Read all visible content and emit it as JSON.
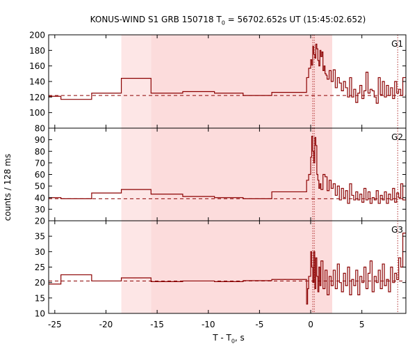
{
  "title": {
    "prefix": "KONUS-WIND S1 GRB 150718 T",
    "sub": "0",
    "suffix": " = 56702.652s UT (15:45:02.652)"
  },
  "xlabel": {
    "prefix": "T - T",
    "sub": "0",
    "suffix": ", s"
  },
  "ylabel": "counts / 128 ms",
  "colors": {
    "curve": "#8b0000",
    "background_dash": "#8b0000",
    "shade_light": "#fde6e6",
    "shade_dark": "#fcdcdc",
    "vline": "#b03030"
  },
  "chart_data": {
    "type": "line",
    "title": "KONUS-WIND S1 GRB 150718 T0 = 56702.652s UT (15:45:02.652)",
    "xlabel": "T - T0, s",
    "ylabel": "counts / 128 ms",
    "xlim": [
      -25.6,
      9.3
    ],
    "xticks": [
      -25,
      -20,
      -15,
      -10,
      -5,
      0,
      5
    ],
    "shaded_intervals": [
      {
        "x0": -18.5,
        "x1": -15.6,
        "shade": "light"
      },
      {
        "x0": -15.6,
        "x1": 2.1,
        "shade": "dark"
      }
    ],
    "vertical_lines": [
      0.2,
      0.35,
      8.5
    ],
    "panels": [
      {
        "name": "G1",
        "ylim": [
          80,
          200
        ],
        "yticks": [
          80,
          100,
          120,
          140,
          160,
          180,
          200
        ],
        "tick_labels": [
          "80",
          "100",
          "120",
          "140",
          "160",
          "180",
          "200"
        ],
        "background": 122,
        "steps": [
          [
            -25.6,
            121
          ],
          [
            -24.4,
            117
          ],
          [
            -21.4,
            125
          ],
          [
            -18.5,
            144
          ],
          [
            -15.6,
            125
          ],
          [
            -12.5,
            127
          ],
          [
            -9.4,
            125
          ],
          [
            -6.6,
            122
          ],
          [
            -3.8,
            126
          ],
          [
            -0.4,
            145
          ],
          [
            -0.2,
            157
          ],
          [
            0.0,
            168
          ],
          [
            0.1,
            161
          ],
          [
            0.2,
            185
          ],
          [
            0.3,
            175
          ],
          [
            0.4,
            170
          ],
          [
            0.5,
            188
          ],
          [
            0.6,
            182
          ],
          [
            0.7,
            167
          ],
          [
            0.8,
            160
          ],
          [
            0.9,
            180
          ],
          [
            1.0,
            172
          ],
          [
            1.1,
            178
          ],
          [
            1.2,
            154
          ],
          [
            1.3,
            160
          ],
          [
            1.4,
            150
          ],
          [
            1.5,
            148
          ],
          [
            1.6,
            143
          ],
          [
            1.8,
            154
          ],
          [
            2.0,
            140
          ],
          [
            2.2,
            155
          ],
          [
            2.4,
            132
          ],
          [
            2.6,
            145
          ],
          [
            2.8,
            138
          ],
          [
            3.0,
            128
          ],
          [
            3.2,
            140
          ],
          [
            3.4,
            132
          ],
          [
            3.6,
            120
          ],
          [
            3.8,
            145
          ],
          [
            4.0,
            120
          ],
          [
            4.2,
            130
          ],
          [
            4.4,
            113
          ],
          [
            4.6,
            125
          ],
          [
            4.8,
            135
          ],
          [
            5.0,
            118
          ],
          [
            5.2,
            128
          ],
          [
            5.4,
            152
          ],
          [
            5.6,
            125
          ],
          [
            5.8,
            130
          ],
          [
            6.0,
            128
          ],
          [
            6.2,
            120
          ],
          [
            6.4,
            112
          ],
          [
            6.6,
            145
          ],
          [
            6.8,
            123
          ],
          [
            7.0,
            140
          ],
          [
            7.2,
            120
          ],
          [
            7.4,
            135
          ],
          [
            7.6,
            122
          ],
          [
            7.8,
            132
          ],
          [
            8.0,
            118
          ],
          [
            8.2,
            140
          ],
          [
            8.4,
            125
          ],
          [
            8.6,
            130
          ],
          [
            8.8,
            122
          ],
          [
            9.0,
            145
          ],
          [
            9.3,
            145
          ]
        ]
      },
      {
        "name": "G2",
        "ylim": [
          20,
          100
        ],
        "yticks": [
          20,
          30,
          40,
          50,
          60,
          70,
          80,
          90
        ],
        "tick_labels": [
          "20",
          "30",
          "40",
          "50",
          "60",
          "70",
          "80",
          "90"
        ],
        "background": 39,
        "steps": [
          [
            -25.6,
            40
          ],
          [
            -24.4,
            39
          ],
          [
            -21.4,
            44
          ],
          [
            -18.5,
            47
          ],
          [
            -15.6,
            43
          ],
          [
            -12.5,
            41
          ],
          [
            -9.4,
            40
          ],
          [
            -6.6,
            39
          ],
          [
            -3.8,
            45
          ],
          [
            -0.4,
            55
          ],
          [
            -0.2,
            60
          ],
          [
            0.0,
            75
          ],
          [
            0.1,
            93
          ],
          [
            0.2,
            80
          ],
          [
            0.3,
            70
          ],
          [
            0.4,
            92
          ],
          [
            0.5,
            85
          ],
          [
            0.6,
            60
          ],
          [
            0.7,
            55
          ],
          [
            0.8,
            48
          ],
          [
            0.9,
            52
          ],
          [
            1.0,
            47
          ],
          [
            1.2,
            60
          ],
          [
            1.4,
            58
          ],
          [
            1.6,
            46
          ],
          [
            1.8,
            55
          ],
          [
            2.0,
            48
          ],
          [
            2.2,
            52
          ],
          [
            2.4,
            42
          ],
          [
            2.6,
            50
          ],
          [
            2.8,
            38
          ],
          [
            3.0,
            48
          ],
          [
            3.2,
            40
          ],
          [
            3.4,
            46
          ],
          [
            3.6,
            35
          ],
          [
            3.8,
            52
          ],
          [
            4.0,
            42
          ],
          [
            4.2,
            38
          ],
          [
            4.4,
            45
          ],
          [
            4.6,
            38
          ],
          [
            4.8,
            43
          ],
          [
            5.0,
            36
          ],
          [
            5.2,
            48
          ],
          [
            5.4,
            38
          ],
          [
            5.6,
            45
          ],
          [
            5.8,
            35
          ],
          [
            6.0,
            40
          ],
          [
            6.2,
            38
          ],
          [
            6.4,
            46
          ],
          [
            6.6,
            35
          ],
          [
            6.8,
            42
          ],
          [
            7.0,
            38
          ],
          [
            7.2,
            45
          ],
          [
            7.4,
            35
          ],
          [
            7.6,
            43
          ],
          [
            7.8,
            38
          ],
          [
            8.0,
            48
          ],
          [
            8.2,
            36
          ],
          [
            8.4,
            44
          ],
          [
            8.6,
            40
          ],
          [
            8.8,
            52
          ],
          [
            9.0,
            38
          ],
          [
            9.3,
            38
          ]
        ]
      },
      {
        "name": "G3",
        "ylim": [
          10,
          40
        ],
        "yticks": [
          10,
          15,
          20,
          25,
          30,
          35
        ],
        "tick_labels": [
          "10",
          "15",
          "20",
          "25",
          "30",
          "35"
        ],
        "background": 20.5,
        "steps": [
          [
            -25.6,
            19.5
          ],
          [
            -24.4,
            22.5
          ],
          [
            -21.4,
            20.5
          ],
          [
            -18.5,
            21.5
          ],
          [
            -15.6,
            20.3
          ],
          [
            -12.5,
            20.5
          ],
          [
            -9.4,
            20.3
          ],
          [
            -6.6,
            20.6
          ],
          [
            -3.8,
            21
          ],
          [
            -0.4,
            13
          ],
          [
            -0.3,
            18
          ],
          [
            -0.2,
            22
          ],
          [
            0.0,
            30
          ],
          [
            0.1,
            25
          ],
          [
            0.2,
            20
          ],
          [
            0.3,
            30
          ],
          [
            0.4,
            18
          ],
          [
            0.5,
            28
          ],
          [
            0.6,
            22
          ],
          [
            0.7,
            17
          ],
          [
            0.8,
            25
          ],
          [
            0.9,
            19
          ],
          [
            1.0,
            27
          ],
          [
            1.2,
            18
          ],
          [
            1.4,
            24
          ],
          [
            1.6,
            16
          ],
          [
            1.8,
            22
          ],
          [
            2.0,
            19
          ],
          [
            2.2,
            24
          ],
          [
            2.4,
            18
          ],
          [
            2.6,
            26
          ],
          [
            2.8,
            20
          ],
          [
            3.0,
            17
          ],
          [
            3.2,
            23
          ],
          [
            3.4,
            19
          ],
          [
            3.6,
            25
          ],
          [
            3.8,
            16
          ],
          [
            4.0,
            21
          ],
          [
            4.2,
            19
          ],
          [
            4.4,
            24
          ],
          [
            4.6,
            16
          ],
          [
            4.8,
            22
          ],
          [
            5.0,
            20
          ],
          [
            5.2,
            25
          ],
          [
            5.4,
            18
          ],
          [
            5.6,
            23
          ],
          [
            5.8,
            27
          ],
          [
            6.0,
            17
          ],
          [
            6.2,
            22
          ],
          [
            6.4,
            20
          ],
          [
            6.6,
            24
          ],
          [
            6.8,
            18
          ],
          [
            7.0,
            26
          ],
          [
            7.2,
            19
          ],
          [
            7.4,
            21
          ],
          [
            7.6,
            17
          ],
          [
            7.8,
            25
          ],
          [
            8.0,
            20
          ],
          [
            8.2,
            23
          ],
          [
            8.4,
            21
          ],
          [
            8.6,
            28
          ],
          [
            8.8,
            25
          ],
          [
            9.0,
            36
          ],
          [
            9.3,
            36
          ]
        ]
      }
    ]
  }
}
